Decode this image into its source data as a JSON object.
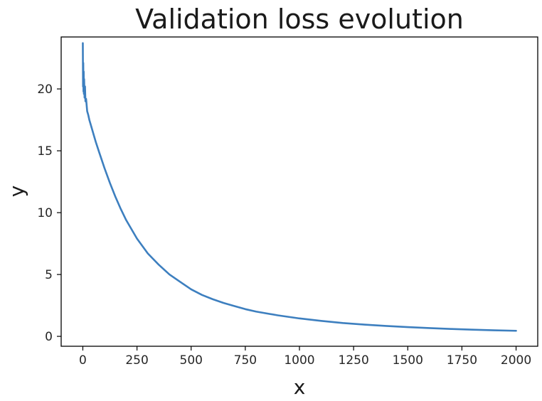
{
  "chart_data": {
    "type": "line",
    "title": "Validation loss evolution",
    "xlabel": "x",
    "ylabel": "y",
    "xlim": [
      -100,
      2100
    ],
    "ylim": [
      -0.8,
      24.2
    ],
    "xticks": [
      0,
      250,
      500,
      750,
      1000,
      1250,
      1500,
      1750,
      2000
    ],
    "yticks": [
      0,
      5,
      10,
      15,
      20
    ],
    "grid": false,
    "series": [
      {
        "color": "#3d7fbf",
        "x": [
          0,
          1,
          2,
          3,
          4,
          5,
          6,
          8,
          10,
          12,
          15,
          20,
          25,
          30,
          40,
          50,
          60,
          75,
          100,
          125,
          150,
          175,
          200,
          250,
          300,
          350,
          400,
          450,
          500,
          550,
          600,
          650,
          700,
          750,
          800,
          900,
          1000,
          1100,
          1200,
          1300,
          1400,
          1500,
          1600,
          1700,
          1800,
          1900,
          2000
        ],
        "y": [
          23.7,
          20.2,
          22.1,
          19.8,
          21.4,
          19.6,
          20.8,
          19.3,
          20.2,
          19.0,
          19.2,
          18.2,
          17.9,
          17.5,
          16.9,
          16.3,
          15.7,
          14.9,
          13.6,
          12.4,
          11.3,
          10.3,
          9.4,
          7.9,
          6.7,
          5.8,
          5.0,
          4.4,
          3.8,
          3.35,
          3.0,
          2.7,
          2.45,
          2.2,
          2.0,
          1.7,
          1.45,
          1.25,
          1.08,
          0.95,
          0.84,
          0.75,
          0.67,
          0.6,
          0.54,
          0.49,
          0.45
        ]
      }
    ]
  }
}
